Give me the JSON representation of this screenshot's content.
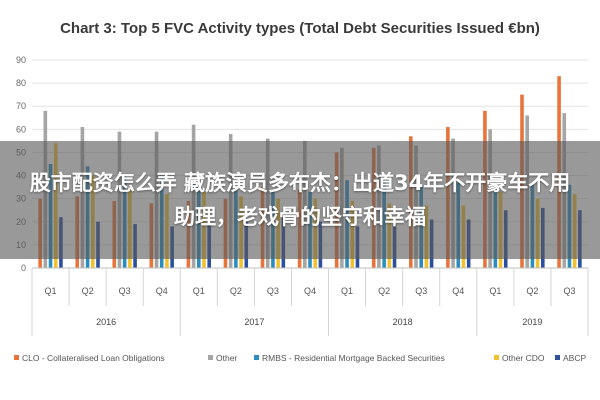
{
  "chart_data": {
    "type": "bar",
    "title": "Chart 3: Top 5 FVC Activity types (Total Debt Securities Issued €bn)",
    "categories": [
      "Q1",
      "Q2",
      "Q3",
      "Q4",
      "Q1",
      "Q2",
      "Q3",
      "Q4",
      "Q1",
      "Q2",
      "Q3",
      "Q4",
      "Q1",
      "Q2",
      "Q3"
    ],
    "years": [
      {
        "label": "2016",
        "span": 4
      },
      {
        "label": "2017",
        "span": 4
      },
      {
        "label": "2018",
        "span": 4
      },
      {
        "label": "2019",
        "span": 3
      }
    ],
    "ylim": [
      0,
      90
    ],
    "yticks": [
      0,
      10,
      20,
      30,
      40,
      50,
      60,
      70,
      80,
      90
    ],
    "grid": true,
    "legend_position": "bottom",
    "series": [
      {
        "name": "CLO - Collateralised Loan Obligations",
        "color": "#e8743b",
        "values": [
          30,
          31,
          29,
          28,
          29,
          30,
          35,
          34,
          50,
          52,
          57,
          61,
          68,
          75,
          83
        ]
      },
      {
        "name": "Other",
        "color": "#a5a5a5",
        "values": [
          68,
          61,
          59,
          59,
          62,
          58,
          56,
          55,
          52,
          53,
          53,
          56,
          60,
          66,
          67
        ]
      },
      {
        "name": "RMBS - Residential Mortgage Backed Securities",
        "color": "#2b8cbe",
        "values": [
          45,
          44,
          40,
          40,
          38,
          35,
          34,
          33,
          38,
          37,
          36,
          37,
          38,
          37,
          36
        ]
      },
      {
        "name": "Other CDO",
        "color": "#f2c12e",
        "values": [
          54,
          40,
          35,
          32,
          33,
          31,
          30,
          30,
          29,
          28,
          27,
          27,
          33,
          30,
          32
        ]
      },
      {
        "name": "ABCP",
        "color": "#2c4f9e",
        "values": [
          22,
          20,
          19,
          18,
          19,
          20,
          22,
          20,
          18,
          19,
          21,
          21,
          25,
          26,
          25
        ]
      }
    ]
  },
  "overlay": {
    "text": "股市配资怎么弄 藏族演员多布杰：出道34年不开豪车不用助理，老戏骨的坚守和幸福"
  }
}
